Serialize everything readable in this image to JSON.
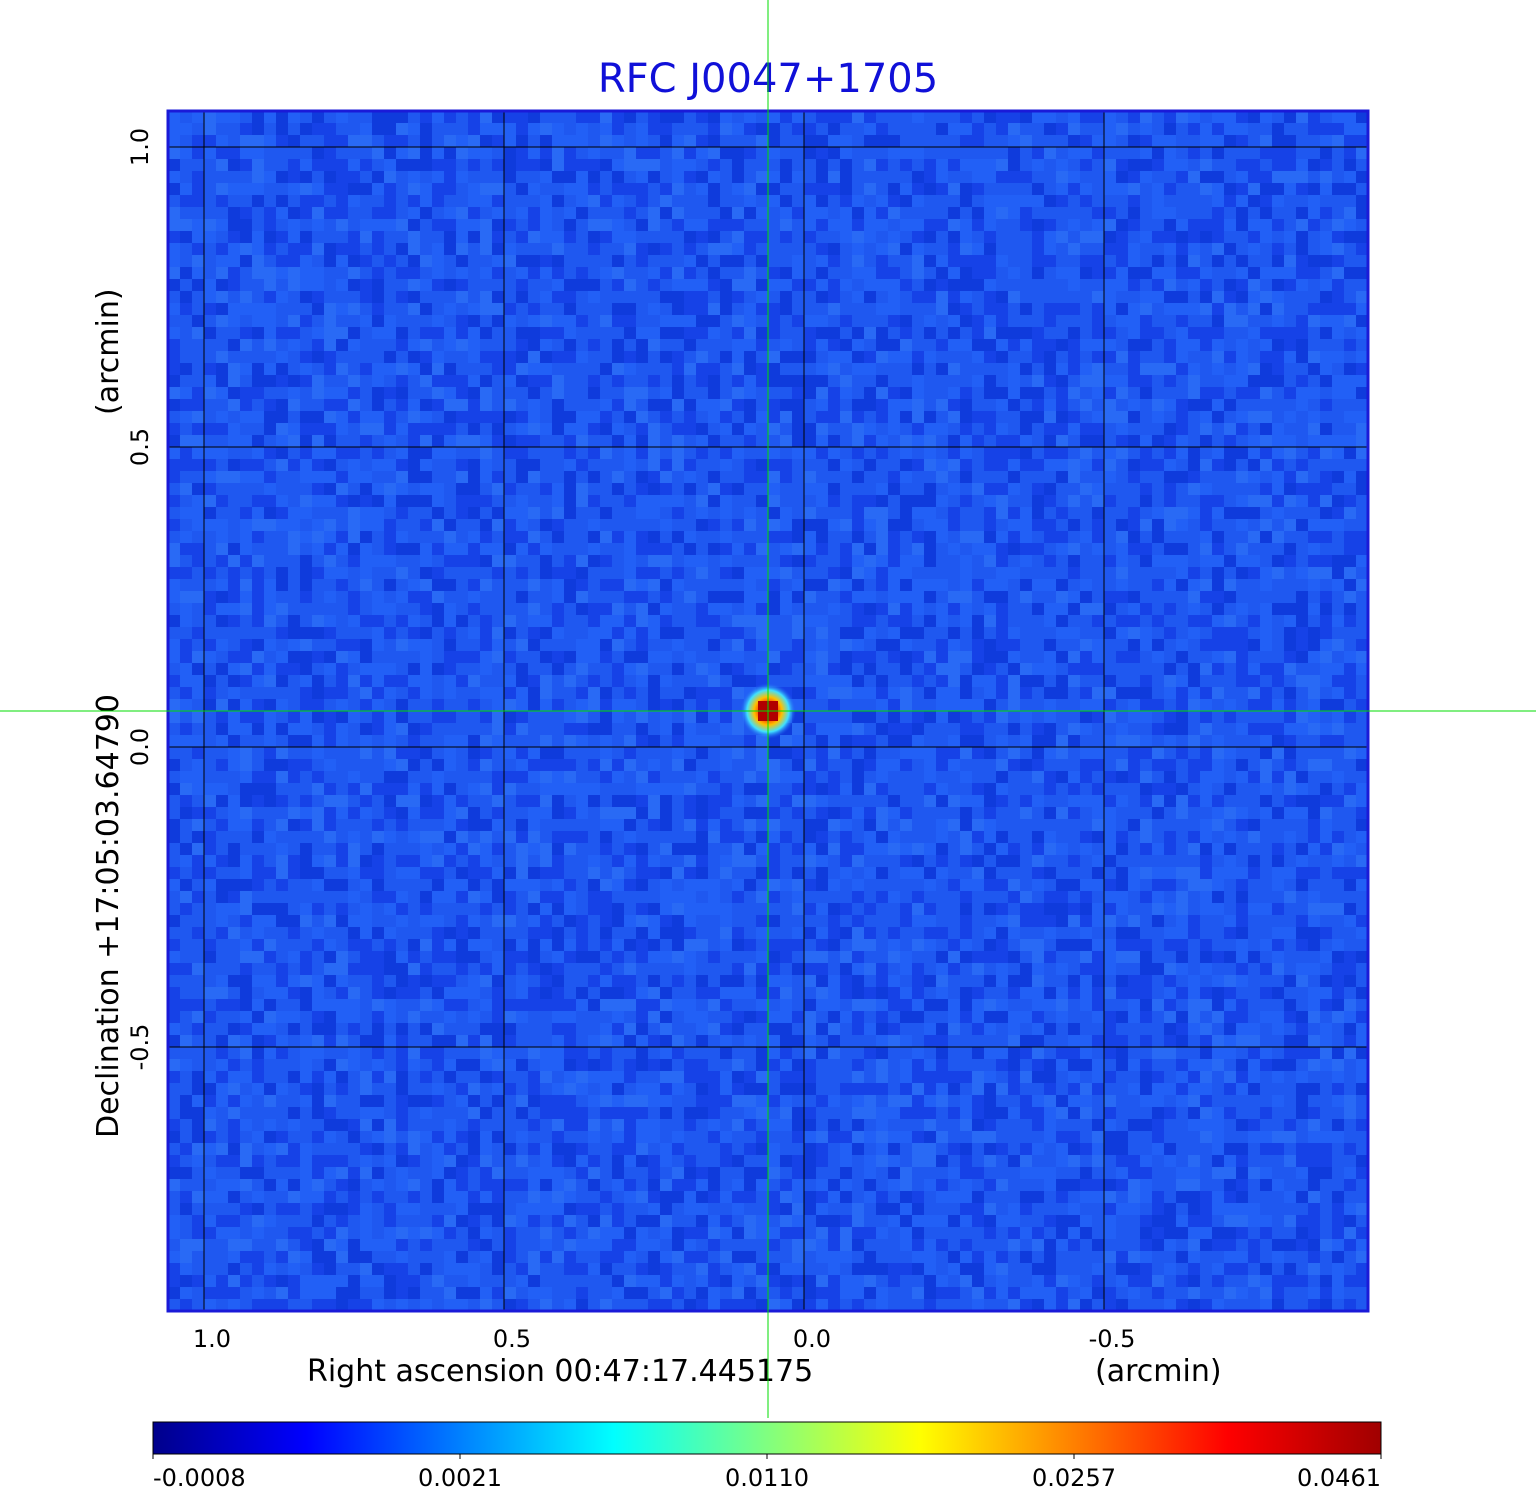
{
  "chart_data": {
    "type": "heatmap",
    "title": "RFC J0047+1705",
    "xlabel": "Right ascension  00:47:17.445175",
    "xunit": "(arcmin)",
    "ylabel": "Declination  +17:05:03.64790",
    "yunit": "(arcmin)",
    "x_ticks": [
      1.0,
      0.5,
      0.0,
      -0.5
    ],
    "x_tick_labels": [
      "1.0",
      "0.5",
      "0.0",
      "-0.5"
    ],
    "y_ticks": [
      1.0,
      0.5,
      0.0,
      -0.5
    ],
    "y_tick_labels": [
      "1.0",
      "0.5",
      "0.0",
      "-0.5"
    ],
    "xlim": [
      1.06,
      -0.94
    ],
    "ylim": [
      -0.94,
      1.06
    ],
    "grid": true,
    "crosshair": {
      "x": 0.06,
      "y": 0.06,
      "color": "#00dd00"
    },
    "source_peak": {
      "x": 0.06,
      "y": 0.06,
      "value": 0.0461
    },
    "colorbar": {
      "colormap": "jet",
      "tick_labels": [
        "-0.0008",
        "0.0021",
        "0.0110",
        "0.0257",
        "0.0461"
      ],
      "values": [
        -0.0008,
        0.0021,
        0.011,
        0.0257,
        0.0461
      ],
      "stops": [
        "#00008b",
        "#0000ff",
        "#0080ff",
        "#00ffff",
        "#80ff80",
        "#ffff00",
        "#ff8000",
        "#ff0000",
        "#a00000"
      ]
    },
    "frame_color": "#1a1ad8",
    "background_color": "#1f58f0"
  }
}
